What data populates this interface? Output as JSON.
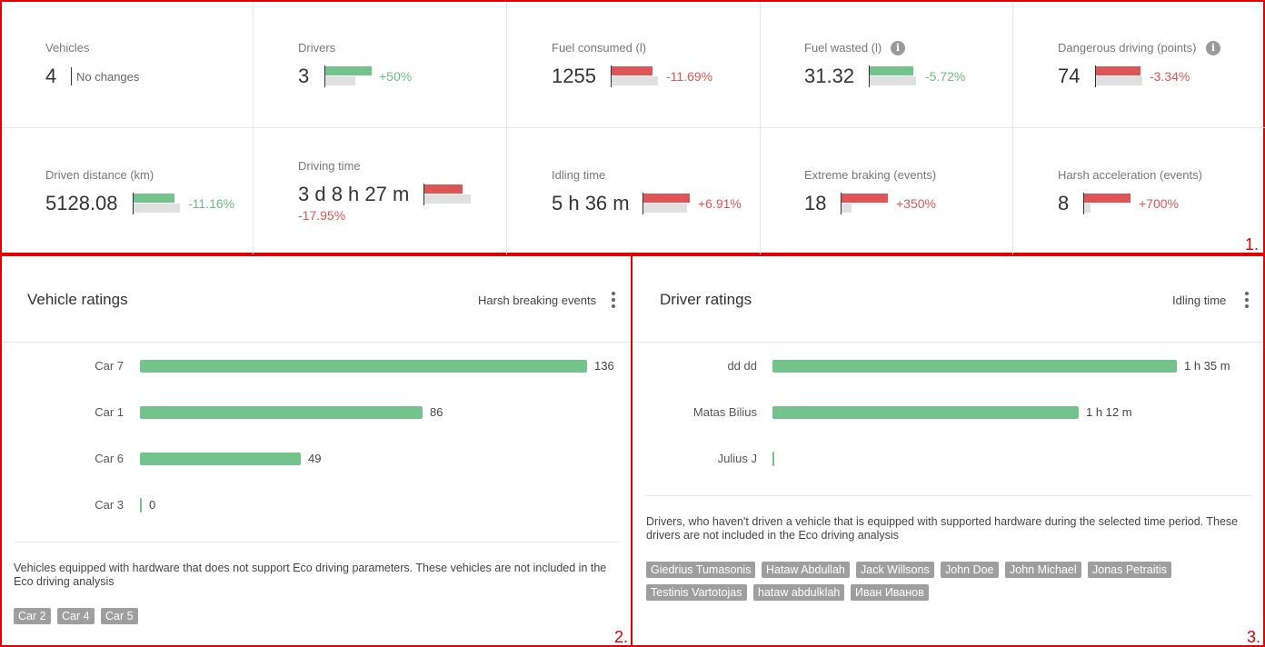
{
  "colors": {
    "positive": "#6dbb85",
    "negative": "#dd5555",
    "bar_green": "#74c28c",
    "bar_red": "#dd5555",
    "bar_prev": "#e0e0e0",
    "annotation": "#e00000"
  },
  "stats": {
    "vehicles": {
      "label": "Vehicles",
      "value": "4",
      "change": "No changes"
    },
    "drivers": {
      "label": "Drivers",
      "value": "3",
      "change": "+50%",
      "trend": "positive",
      "current_ratio": 1.0,
      "previous_ratio": 0.65
    },
    "fuel_consumed": {
      "label": "Fuel consumed (l)",
      "value": "1255",
      "change": "-11.69%",
      "trend": "negative",
      "current_ratio": 0.88,
      "previous_ratio": 1.0
    },
    "fuel_wasted": {
      "label": "Fuel wasted (l)",
      "value": "31.32",
      "change": "-5.72%",
      "trend": "positive",
      "current_ratio": 0.94,
      "previous_ratio": 1.0,
      "info_icon": "info-icon"
    },
    "dangerous_driving": {
      "label": "Dangerous driving (points)",
      "value": "74",
      "change": "-3.34%",
      "trend": "negative",
      "current_ratio": 0.96,
      "previous_ratio": 1.0,
      "info_icon": "info-icon"
    },
    "driven_distance": {
      "label": "Driven distance (km)",
      "value": "5128.08",
      "change": "-11.16%",
      "trend": "positive",
      "current_ratio": 0.89,
      "previous_ratio": 1.0
    },
    "driving_time": {
      "label": "Driving time",
      "value": "3 d 8 h 27 m",
      "change": "-17.95%",
      "trend": "negative",
      "current_ratio": 0.82,
      "previous_ratio": 1.0
    },
    "idling_time": {
      "label": "Idling time",
      "value": "5 h 36 m",
      "change": "+6.91%",
      "trend": "negative",
      "current_ratio": 1.0,
      "previous_ratio": 0.94
    },
    "extreme_braking": {
      "label": "Extreme braking (events)",
      "value": "18",
      "change": "+350%",
      "trend": "negative",
      "current_ratio": 1.0,
      "previous_ratio": 0.22
    },
    "harsh_acceleration": {
      "label": "Harsh acceleration (events)",
      "value": "8",
      "change": "+700%",
      "trend": "negative",
      "current_ratio": 1.0,
      "previous_ratio": 0.13
    }
  },
  "vehicle_ratings": {
    "title": "Vehicle ratings",
    "metric": "Harsh breaking events",
    "items": [
      {
        "label": "Car 7",
        "value": 136,
        "display": "136"
      },
      {
        "label": "Car 1",
        "value": 86,
        "display": "86"
      },
      {
        "label": "Car 6",
        "value": 49,
        "display": "49"
      },
      {
        "label": "Car 3",
        "value": 0,
        "display": "0"
      }
    ],
    "note": "Vehicles equipped with hardware that does not support Eco driving parameters. These vehicles are not included in the Eco driving analysis",
    "excluded": [
      "Car 2",
      "Car 4",
      "Car 5"
    ]
  },
  "driver_ratings": {
    "title": "Driver ratings",
    "metric": "Idling time",
    "items": [
      {
        "label": "dd dd",
        "value": 95,
        "display": "1 h 35 m"
      },
      {
        "label": "Matas Bilius",
        "value": 72,
        "display": "1 h 12 m"
      },
      {
        "label": "Julius J",
        "value": 0,
        "display": ""
      }
    ],
    "note": "Drivers, who haven't driven a vehicle that is equipped with supported hardware during the selected time period. These drivers are not included in the Eco driving analysis",
    "excluded": [
      "Giedrius Tumasonis",
      "Hataw Abdullah",
      "Jack Willsons",
      "John Doe",
      "John Michael",
      "Jonas Petraitis",
      "Testinis Vartotojas",
      "hataw abdulklah",
      "Иван Иванов"
    ]
  },
  "annotations": {
    "panel1": "1.",
    "panel2": "2.",
    "panel3": "3."
  }
}
